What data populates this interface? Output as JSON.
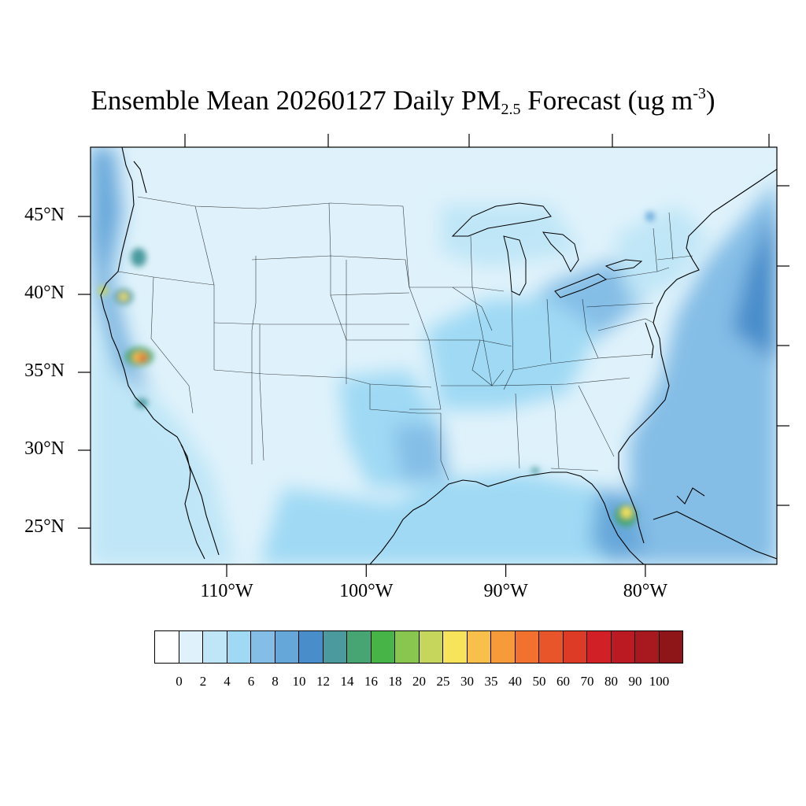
{
  "title": {
    "prefix": "Ensemble Mean 20260127 Daily PM",
    "subscript": "2.5",
    "middle": " Forecast (ug m",
    "superscript": "-3",
    "suffix": ")"
  },
  "map": {
    "lon_range": [
      -120.5,
      -71.5
    ],
    "lat_range": [
      22.8,
      49.5
    ],
    "lat_ticks": [
      {
        "value": 45,
        "label": "45°N"
      },
      {
        "value": 40,
        "label": "40°N"
      },
      {
        "value": 35,
        "label": "35°N"
      },
      {
        "value": 30,
        "label": "30°N"
      },
      {
        "value": 25,
        "label": "25°N"
      }
    ],
    "lon_ticks": [
      {
        "value": -110,
        "label": "110°W"
      },
      {
        "value": -100,
        "label": "100°W"
      },
      {
        "value": -90,
        "label": "90°W"
      },
      {
        "value": -80,
        "label": "80°W"
      }
    ],
    "background_color": "#dff2fb",
    "hotspots": [
      {
        "region": "Central California (Bakersfield)",
        "lon": -118.9,
        "lat": 35.6,
        "value": 60
      },
      {
        "region": "Northern California",
        "lon": -120.5,
        "lat": 39.7,
        "value": 30
      },
      {
        "region": "Sacramento Valley",
        "lon": -121.7,
        "lat": 40.3,
        "value": 25
      },
      {
        "region": "South Florida",
        "lon": -80.3,
        "lat": 26.0,
        "value": 25
      },
      {
        "region": "Oregon Willamette",
        "lon": -122.9,
        "lat": 44.1,
        "value": 12
      },
      {
        "region": "Pacific coast",
        "lon": -124.0,
        "lat": 43.0,
        "value": 10
      },
      {
        "region": "Ohio Valley",
        "lon": -85.5,
        "lat": 38.8,
        "value": 8
      },
      {
        "region": "Atlantic offshore",
        "lon": -73.5,
        "lat": 36.0,
        "value": 9
      },
      {
        "region": "Gulf of Mexico",
        "lon": -88.0,
        "lat": 26.5,
        "value": 6
      },
      {
        "region": "Southern Plains",
        "lon": -96.5,
        "lat": 33.0,
        "value": 6
      }
    ]
  },
  "colorbar": {
    "labels": [
      "0",
      "2",
      "4",
      "6",
      "8",
      "10",
      "12",
      "14",
      "16",
      "18",
      "20",
      "25",
      "30",
      "35",
      "40",
      "50",
      "60",
      "70",
      "80",
      "90",
      "100"
    ],
    "colors": [
      "#ffffff",
      "#dff2fb",
      "#bfe6f7",
      "#9fd9f4",
      "#84bde6",
      "#66a7da",
      "#4a8dcb",
      "#4a9a9e",
      "#46a572",
      "#47b448",
      "#89c64f",
      "#c6d65c",
      "#f8e45a",
      "#f8bf4a",
      "#f69a3a",
      "#f2712e",
      "#e8552a",
      "#de3b27",
      "#d22027",
      "#bc1a23",
      "#a8191f",
      "#8e1619"
    ]
  }
}
